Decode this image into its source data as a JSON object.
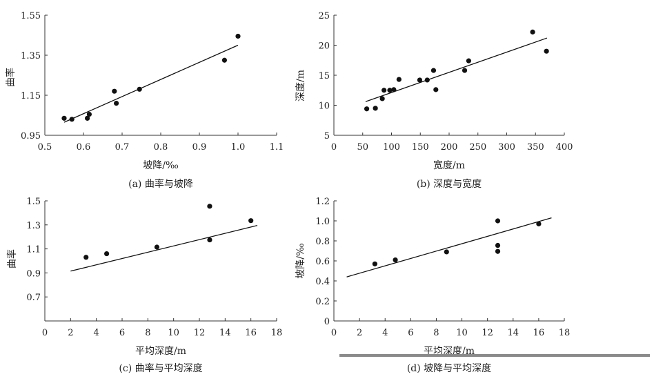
{
  "chart_data": [
    {
      "type": "scatter",
      "subplot": "a",
      "caption": "(a) 曲率与坡降",
      "xlabel": "坡降/‰",
      "ylabel": "曲率",
      "xlim": [
        0.5,
        1.1
      ],
      "ylim": [
        0.95,
        1.55
      ],
      "xticks": [
        "0.5",
        "0.6",
        "0.7",
        "0.8",
        "0.9",
        "1.0",
        "1.1"
      ],
      "yticks": [
        "0.95",
        "1.15",
        "1.35",
        "1.55"
      ],
      "points": [
        {
          "x": 0.55,
          "y": 1.035
        },
        {
          "x": 0.57,
          "y": 1.03
        },
        {
          "x": 0.61,
          "y": 1.035
        },
        {
          "x": 0.615,
          "y": 1.055
        },
        {
          "x": 0.68,
          "y": 1.17
        },
        {
          "x": 0.685,
          "y": 1.11
        },
        {
          "x": 0.745,
          "y": 1.18
        },
        {
          "x": 0.965,
          "y": 1.325
        },
        {
          "x": 1.0,
          "y": 1.445
        }
      ],
      "trendline": {
        "x": [
          0.55,
          1.0
        ],
        "y": [
          1.015,
          1.4
        ]
      }
    },
    {
      "type": "scatter",
      "subplot": "b",
      "caption": "(b) 深度与宽度",
      "xlabel": "宽度/m",
      "ylabel": "深度/m",
      "xlim": [
        0,
        400
      ],
      "ylim": [
        5,
        25
      ],
      "xticks": [
        "0",
        "50",
        "100",
        "150",
        "200",
        "250",
        "300",
        "350",
        "400"
      ],
      "yticks": [
        "5",
        "10",
        "15",
        "20",
        "25"
      ],
      "points": [
        {
          "x": 57,
          "y": 9.4
        },
        {
          "x": 72,
          "y": 9.5
        },
        {
          "x": 84,
          "y": 11.1
        },
        {
          "x": 87,
          "y": 12.5
        },
        {
          "x": 97,
          "y": 12.5
        },
        {
          "x": 104,
          "y": 12.6
        },
        {
          "x": 113,
          "y": 14.3
        },
        {
          "x": 149,
          "y": 14.2
        },
        {
          "x": 162,
          "y": 14.2
        },
        {
          "x": 173,
          "y": 15.8
        },
        {
          "x": 177,
          "y": 12.6
        },
        {
          "x": 227,
          "y": 15.8
        },
        {
          "x": 234,
          "y": 17.4
        },
        {
          "x": 345,
          "y": 22.2
        },
        {
          "x": 369,
          "y": 19.0
        }
      ],
      "trendline": {
        "x": [
          55,
          370
        ],
        "y": [
          10.6,
          21.2
        ]
      }
    },
    {
      "type": "scatter",
      "subplot": "c",
      "caption": "(c) 曲率与平均深度",
      "xlabel": "平均深度/m",
      "ylabel": "曲率",
      "xlim": [
        0,
        18
      ],
      "ylim": [
        0.5,
        1.5
      ],
      "xticks": [
        "0",
        "2",
        "4",
        "6",
        "8",
        "10",
        "12",
        "14",
        "16",
        "18"
      ],
      "yticks": [
        "0.7",
        "0.9",
        "1.1",
        "1.3",
        "1.5"
      ],
      "points": [
        {
          "x": 3.2,
          "y": 1.03
        },
        {
          "x": 4.8,
          "y": 1.06
        },
        {
          "x": 8.7,
          "y": 1.115
        },
        {
          "x": 12.8,
          "y": 1.455
        },
        {
          "x": 12.8,
          "y": 1.175
        },
        {
          "x": 16.0,
          "y": 1.335
        }
      ],
      "trendline": {
        "x": [
          2,
          16.5
        ],
        "y": [
          0.915,
          1.295
        ]
      }
    },
    {
      "type": "scatter",
      "subplot": "d",
      "caption": "(d) 坡降与平均深度",
      "xlabel": "平均深度/m",
      "ylabel": "坡降/‰",
      "xlim": [
        0,
        18
      ],
      "ylim": [
        0,
        1.2
      ],
      "xticks": [
        "0",
        "2",
        "4",
        "6",
        "8",
        "10",
        "12",
        "14",
        "16",
        "18"
      ],
      "yticks": [
        "0",
        "0.2",
        "0.4",
        "0.6",
        "0.8",
        "1.0",
        "1.2"
      ],
      "points": [
        {
          "x": 3.2,
          "y": 0.57
        },
        {
          "x": 4.8,
          "y": 0.61
        },
        {
          "x": 8.8,
          "y": 0.69
        },
        {
          "x": 12.8,
          "y": 1.0
        },
        {
          "x": 12.8,
          "y": 0.755
        },
        {
          "x": 12.8,
          "y": 0.695
        },
        {
          "x": 16.0,
          "y": 0.97
        }
      ],
      "trendline": {
        "x": [
          1,
          17
        ],
        "y": [
          0.44,
          1.03
        ]
      }
    }
  ]
}
